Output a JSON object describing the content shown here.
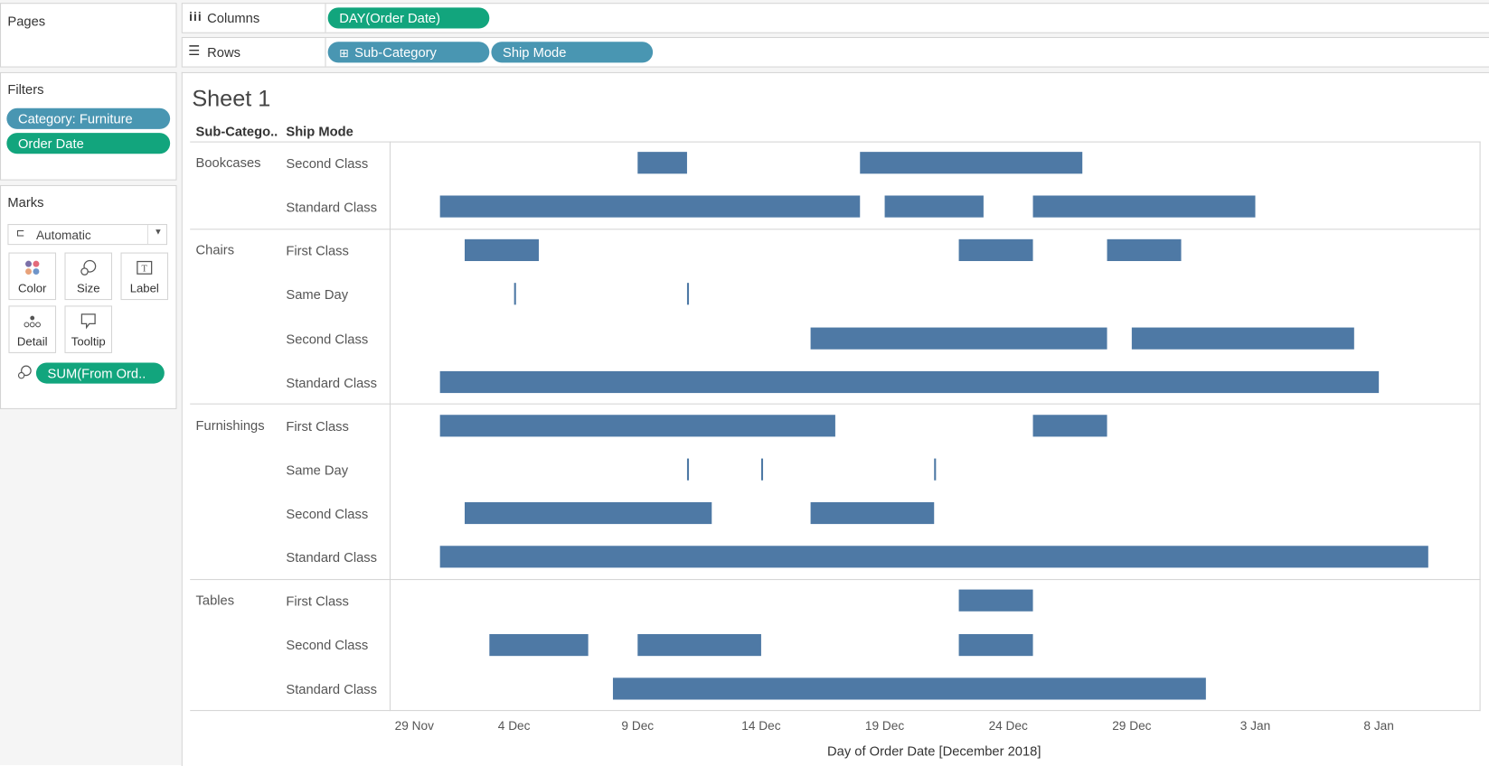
{
  "shelves": {
    "pages_title": "Pages",
    "columns_label": "Columns",
    "columns_icon": "columns-icon",
    "columns_pill": "DAY(Order Date)",
    "rows_label": "Rows",
    "rows_icon": "rows-icon",
    "rows_pills": [
      "Sub-Category",
      "Ship Mode"
    ],
    "rows_pill0_prefix": "⊞"
  },
  "filters": {
    "title": "Filters",
    "items": [
      "Category: Furniture",
      "Order Date"
    ]
  },
  "marks": {
    "title": "Marks",
    "mark_type": "Automatic",
    "buttons": [
      "Color",
      "Size",
      "Label",
      "Detail",
      "Tooltip"
    ],
    "size_pill": "SUM(From Ord.."
  },
  "sheet": {
    "title": "Sheet 1",
    "header_subcat": "Sub-Catego..",
    "header_shipmode": "Ship Mode"
  },
  "colors": {
    "bar": "#4e79a5",
    "pill_green": "#12a57d",
    "pill_blue": "#4996b2"
  },
  "chart_data": {
    "type": "gantt",
    "title": "Sheet 1",
    "xlabel": "Day of Order Date [December 2018]",
    "ylabel": "Sub-Category / Ship Mode",
    "x_ticks": [
      "29 Nov",
      "4 Dec",
      "9 Dec",
      "14 Dec",
      "19 Dec",
      "24 Dec",
      "29 Dec",
      "3 Jan",
      "8 Jan"
    ],
    "x_range": [
      "29 Nov 2018",
      "12 Jan 2019"
    ],
    "grid": false,
    "day_origin": "29 Nov",
    "groups": [
      {
        "sub_category": "Bookcases",
        "rows": [
          {
            "ship_mode": "Second Class",
            "bars": [
              [
                10,
                12
              ],
              [
                19,
                28
              ]
            ]
          },
          {
            "ship_mode": "Standard Class",
            "bars": [
              [
                2,
                19
              ],
              [
                20,
                24
              ],
              [
                26,
                35
              ]
            ]
          }
        ]
      },
      {
        "sub_category": "Chairs",
        "rows": [
          {
            "ship_mode": "First Class",
            "bars": [
              [
                3,
                6
              ],
              [
                23,
                26
              ],
              [
                29,
                32
              ]
            ]
          },
          {
            "ship_mode": "Same Day",
            "bars": [
              [
                5,
                5
              ],
              [
                12,
                12
              ]
            ]
          },
          {
            "ship_mode": "Second Class",
            "bars": [
              [
                17,
                29
              ],
              [
                30,
                39
              ]
            ]
          },
          {
            "ship_mode": "Standard Class",
            "bars": [
              [
                2,
                40
              ]
            ]
          }
        ]
      },
      {
        "sub_category": "Furnishings",
        "rows": [
          {
            "ship_mode": "First Class",
            "bars": [
              [
                2,
                18
              ],
              [
                26,
                29
              ]
            ]
          },
          {
            "ship_mode": "Same Day",
            "bars": [
              [
                12,
                12
              ],
              [
                15,
                15
              ],
              [
                22,
                22
              ]
            ]
          },
          {
            "ship_mode": "Second Class",
            "bars": [
              [
                3,
                13
              ],
              [
                17,
                22
              ]
            ]
          },
          {
            "ship_mode": "Standard Class",
            "bars": [
              [
                2,
                42
              ]
            ]
          }
        ]
      },
      {
        "sub_category": "Tables",
        "rows": [
          {
            "ship_mode": "First Class",
            "bars": [
              [
                23,
                26
              ]
            ]
          },
          {
            "ship_mode": "Second Class",
            "bars": [
              [
                4,
                8
              ],
              [
                10,
                15
              ],
              [
                23,
                26
              ]
            ]
          },
          {
            "ship_mode": "Standard Class",
            "bars": [
              [
                9,
                33
              ]
            ]
          }
        ]
      }
    ]
  }
}
